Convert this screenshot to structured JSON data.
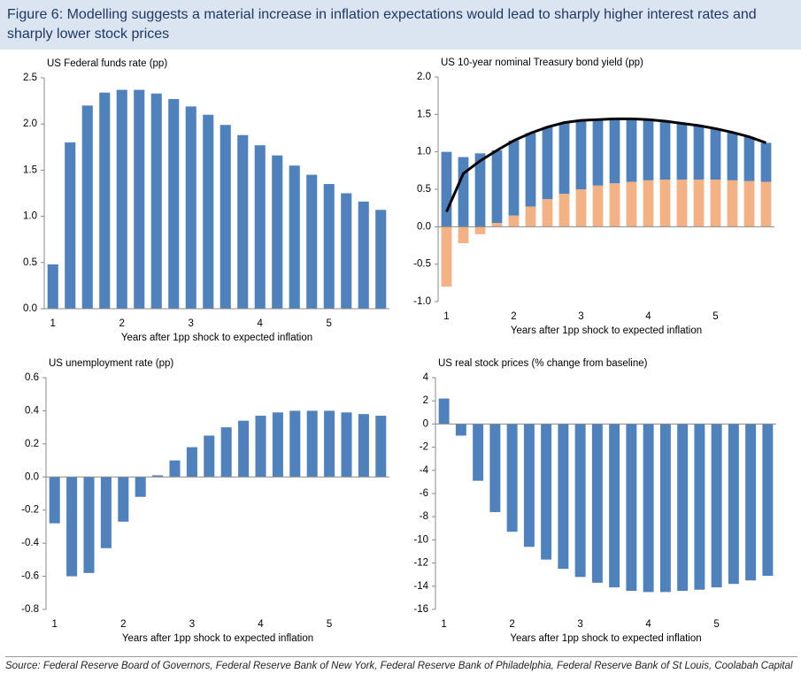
{
  "header": {
    "title": "Figure 6: Modelling suggests a material increase in inflation expectations would lead to sharply higher interest rates and sharply lower stock prices"
  },
  "source": "Source: Federal Reserve Board of Governors, Federal Reserve Bank of New York, Federal Reserve Bank of Philadelphia, Federal Reserve Bank of St Louis, Coolabah Capital",
  "chart_data": [
    {
      "type": "bar",
      "title": "US Federal funds rate (pp)",
      "x_label": "Years after 1pp shock to expected inflation",
      "categories": [
        "1",
        null,
        null,
        null,
        "2",
        null,
        null,
        null,
        "3",
        null,
        null,
        null,
        "4",
        null,
        null,
        null,
        "5",
        null,
        null,
        null
      ],
      "values": [
        0.48,
        1.8,
        2.2,
        2.34,
        2.37,
        2.37,
        2.33,
        2.27,
        2.19,
        2.1,
        1.99,
        1.88,
        1.77,
        1.66,
        1.55,
        1.45,
        1.35,
        1.25,
        1.16,
        1.07
      ],
      "color": "#4f81bd",
      "ylim": [
        0,
        2.5
      ],
      "yticks": [
        {
          "value": 0,
          "label": "0.0"
        },
        0.5,
        {
          "value": 1,
          "label": "1.0"
        },
        1.5,
        {
          "value": 2,
          "label": "2.0"
        },
        2.5
      ]
    },
    {
      "type": "stacked_bar",
      "title": "US 10-year nominal Treasury bond yield (pp)",
      "x_label": "Years after 1pp shock to expected inflation",
      "categories": [
        "1",
        null,
        null,
        null,
        "2",
        null,
        null,
        null,
        "3",
        null,
        null,
        null,
        "4",
        null,
        null,
        null,
        "5",
        null,
        null,
        null
      ],
      "series": [
        {
          "color": "#f4b183",
          "values": [
            -0.8,
            -0.22,
            -0.1,
            0.05,
            0.15,
            0.27,
            0.37,
            0.44,
            0.5,
            0.55,
            0.58,
            0.6,
            0.62,
            0.63,
            0.63,
            0.63,
            0.63,
            0.62,
            0.61,
            0.6
          ]
        },
        {
          "color": "#4f81bd",
          "values": [
            1.0,
            0.93,
            0.98,
            0.97,
            1.0,
            0.98,
            0.96,
            0.95,
            0.92,
            0.88,
            0.86,
            0.84,
            0.81,
            0.78,
            0.75,
            0.72,
            0.68,
            0.64,
            0.59,
            0.52
          ]
        },
        {
          "type": "line",
          "color": "#000000",
          "values": [
            0.2,
            0.71,
            0.88,
            1.02,
            1.15,
            1.25,
            1.33,
            1.39,
            1.42,
            1.43,
            1.44,
            1.44,
            1.43,
            1.41,
            1.38,
            1.35,
            1.31,
            1.26,
            1.2,
            1.12
          ]
        }
      ],
      "ylim": [
        -1,
        2
      ],
      "yticks": [
        {
          "value": -1,
          "label": "-1.0"
        },
        -0.5,
        {
          "value": 0,
          "label": "0.0"
        },
        0.5,
        {
          "value": 1,
          "label": "1.0"
        },
        1.5,
        {
          "value": 2,
          "label": "2.0"
        }
      ]
    },
    {
      "type": "bar",
      "title": "US unemployment rate (pp)",
      "x_label": "Years after 1pp shock to expected inflation",
      "categories": [
        "1",
        null,
        null,
        null,
        "2",
        null,
        null,
        null,
        "3",
        null,
        null,
        null,
        "4",
        null,
        null,
        null,
        "5",
        null,
        null,
        null
      ],
      "values": [
        -0.28,
        -0.6,
        -0.58,
        -0.43,
        -0.27,
        -0.12,
        0.01,
        0.1,
        0.18,
        0.25,
        0.3,
        0.34,
        0.37,
        0.39,
        0.4,
        0.4,
        0.4,
        0.39,
        0.38,
        0.37
      ],
      "color": "#4f81bd",
      "ylim": [
        -0.8,
        0.6
      ],
      "yticks": [
        -0.8,
        -0.6,
        -0.4,
        -0.2,
        {
          "value": 0,
          "label": "0.0"
        },
        0.2,
        0.4,
        0.6
      ]
    },
    {
      "type": "bar",
      "title": "US real stock prices (% change from baseline)",
      "x_label": "Years after 1pp shock to expected inflation",
      "categories": [
        "1",
        null,
        null,
        null,
        "2",
        null,
        null,
        null,
        "3",
        null,
        null,
        null,
        "4",
        null,
        null,
        null,
        "5",
        null,
        null,
        null
      ],
      "values": [
        2.2,
        -1.0,
        -4.9,
        -7.6,
        -9.3,
        -10.6,
        -11.7,
        -12.5,
        -13.2,
        -13.7,
        -14.1,
        -14.4,
        -14.5,
        -14.5,
        -14.4,
        -14.3,
        -14.1,
        -13.8,
        -13.5,
        -13.1
      ],
      "color": "#4f81bd",
      "ylim": [
        -16,
        4
      ],
      "yticks": [
        -16,
        -14,
        -12,
        -10,
        -8,
        -6,
        -4,
        -2,
        0,
        2,
        4
      ]
    }
  ]
}
